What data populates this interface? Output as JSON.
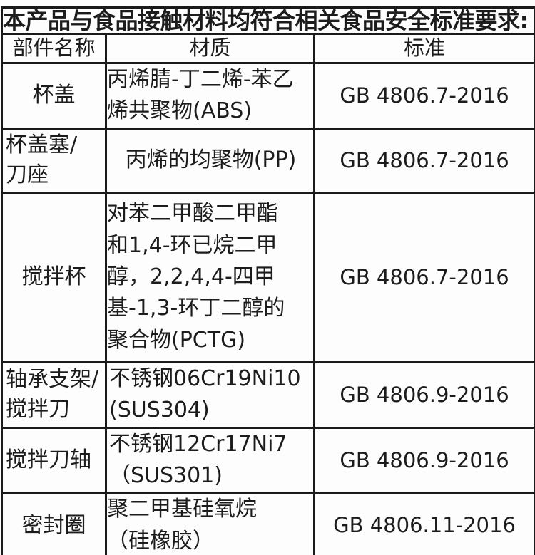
{
  "title": "本产品与食品接触材料均符合相关食品安全标准要求:",
  "table": {
    "headers": {
      "part": "部件名称",
      "material": "材质",
      "standard": "标准"
    },
    "rows": [
      {
        "part": "杯盖",
        "material": "丙烯腈-丁二烯-苯乙\n烯共聚物(ABS)",
        "standard": "GB 4806.7-2016"
      },
      {
        "part": "杯盖塞/\n刀座",
        "material": "丙烯的均聚物(PP)",
        "standard": "GB 4806.7-2016"
      },
      {
        "part": "搅拌杯",
        "material": "对苯二甲酸二甲酯\n和1,4-环已烷二甲\n醇，2,2,4,4-四甲\n基-1,3-环丁二醇的\n聚合物(PCTG)",
        "standard": "GB 4806.7-2016"
      },
      {
        "part": "轴承支架/\n搅拌刀",
        "material": "不锈钢06Cr19Ni10\n(SUS304)",
        "standard": "GB 4806.9-2016"
      },
      {
        "part": "搅拌刀轴",
        "material": "不锈钢12Cr17Ni7\n（SUS301)",
        "standard": "GB 4806.9-2016"
      },
      {
        "part": "密封圈",
        "material": "聚二甲基硅氧烷\n（硅橡胶）",
        "standard": "GB 4806.11-2016"
      }
    ]
  },
  "colors": {
    "border": "#1a1a1a",
    "text": "#1c1c1c",
    "background": "#fdfdfd"
  }
}
